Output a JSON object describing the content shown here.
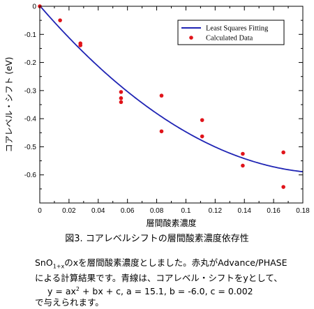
{
  "chart_data": {
    "type": "scatter",
    "xlabel": "層間酸素濃度",
    "ylabel": "コアレベル・シフト (eV)",
    "xlim": [
      0,
      0.18
    ],
    "ylim": [
      -0.7,
      0
    ],
    "x_ticks": [
      "0",
      "0.02",
      "0.04",
      "0.06",
      "0.08",
      "0.1",
      "0.12",
      "0.14",
      "0.16",
      "0.18"
    ],
    "y_ticks": [
      "0",
      "-0.1",
      "-0.2",
      "-0.3",
      "-0.4",
      "-0.5",
      "-0.6"
    ],
    "legend_position": "top-right",
    "series": [
      {
        "name": "Least Squares Fitting",
        "kind": "line",
        "color": "#1f24b4",
        "equation": {
          "a": 15.1,
          "b": -6.0,
          "c": 0.002
        }
      },
      {
        "name": "Calculated Data",
        "kind": "scatter",
        "color": "#e0141a",
        "x": [
          0.0,
          0.0139,
          0.0278,
          0.0278,
          0.0556,
          0.0556,
          0.0556,
          0.0833,
          0.0833,
          0.1111,
          0.1111,
          0.1389,
          0.1389,
          0.1667,
          0.1667
        ],
        "y": [
          0.0,
          -0.05,
          -0.132,
          -0.139,
          -0.305,
          -0.327,
          -0.341,
          -0.318,
          -0.445,
          -0.405,
          -0.463,
          -0.525,
          -0.567,
          -0.52,
          -0.643
        ]
      }
    ]
  },
  "caption": {
    "fig_label": "図3.",
    "title": "コアレベルシフトの層間酸素濃度依存性"
  },
  "description": {
    "formula_base": "SnO",
    "formula_sub": "1+x",
    "line1_after": "のxを層間酸素濃度としました。赤丸がAdvance/PHASE",
    "line2": "による計算結果です。青線は、コアレベル・シフトをyとして、",
    "line3_pre": "y = ax",
    "line3_sup": "2",
    "line3_post": " + bx + c, a = 15.1, b = -6.0, c = 0.002",
    "line4": "で与えられます。"
  }
}
